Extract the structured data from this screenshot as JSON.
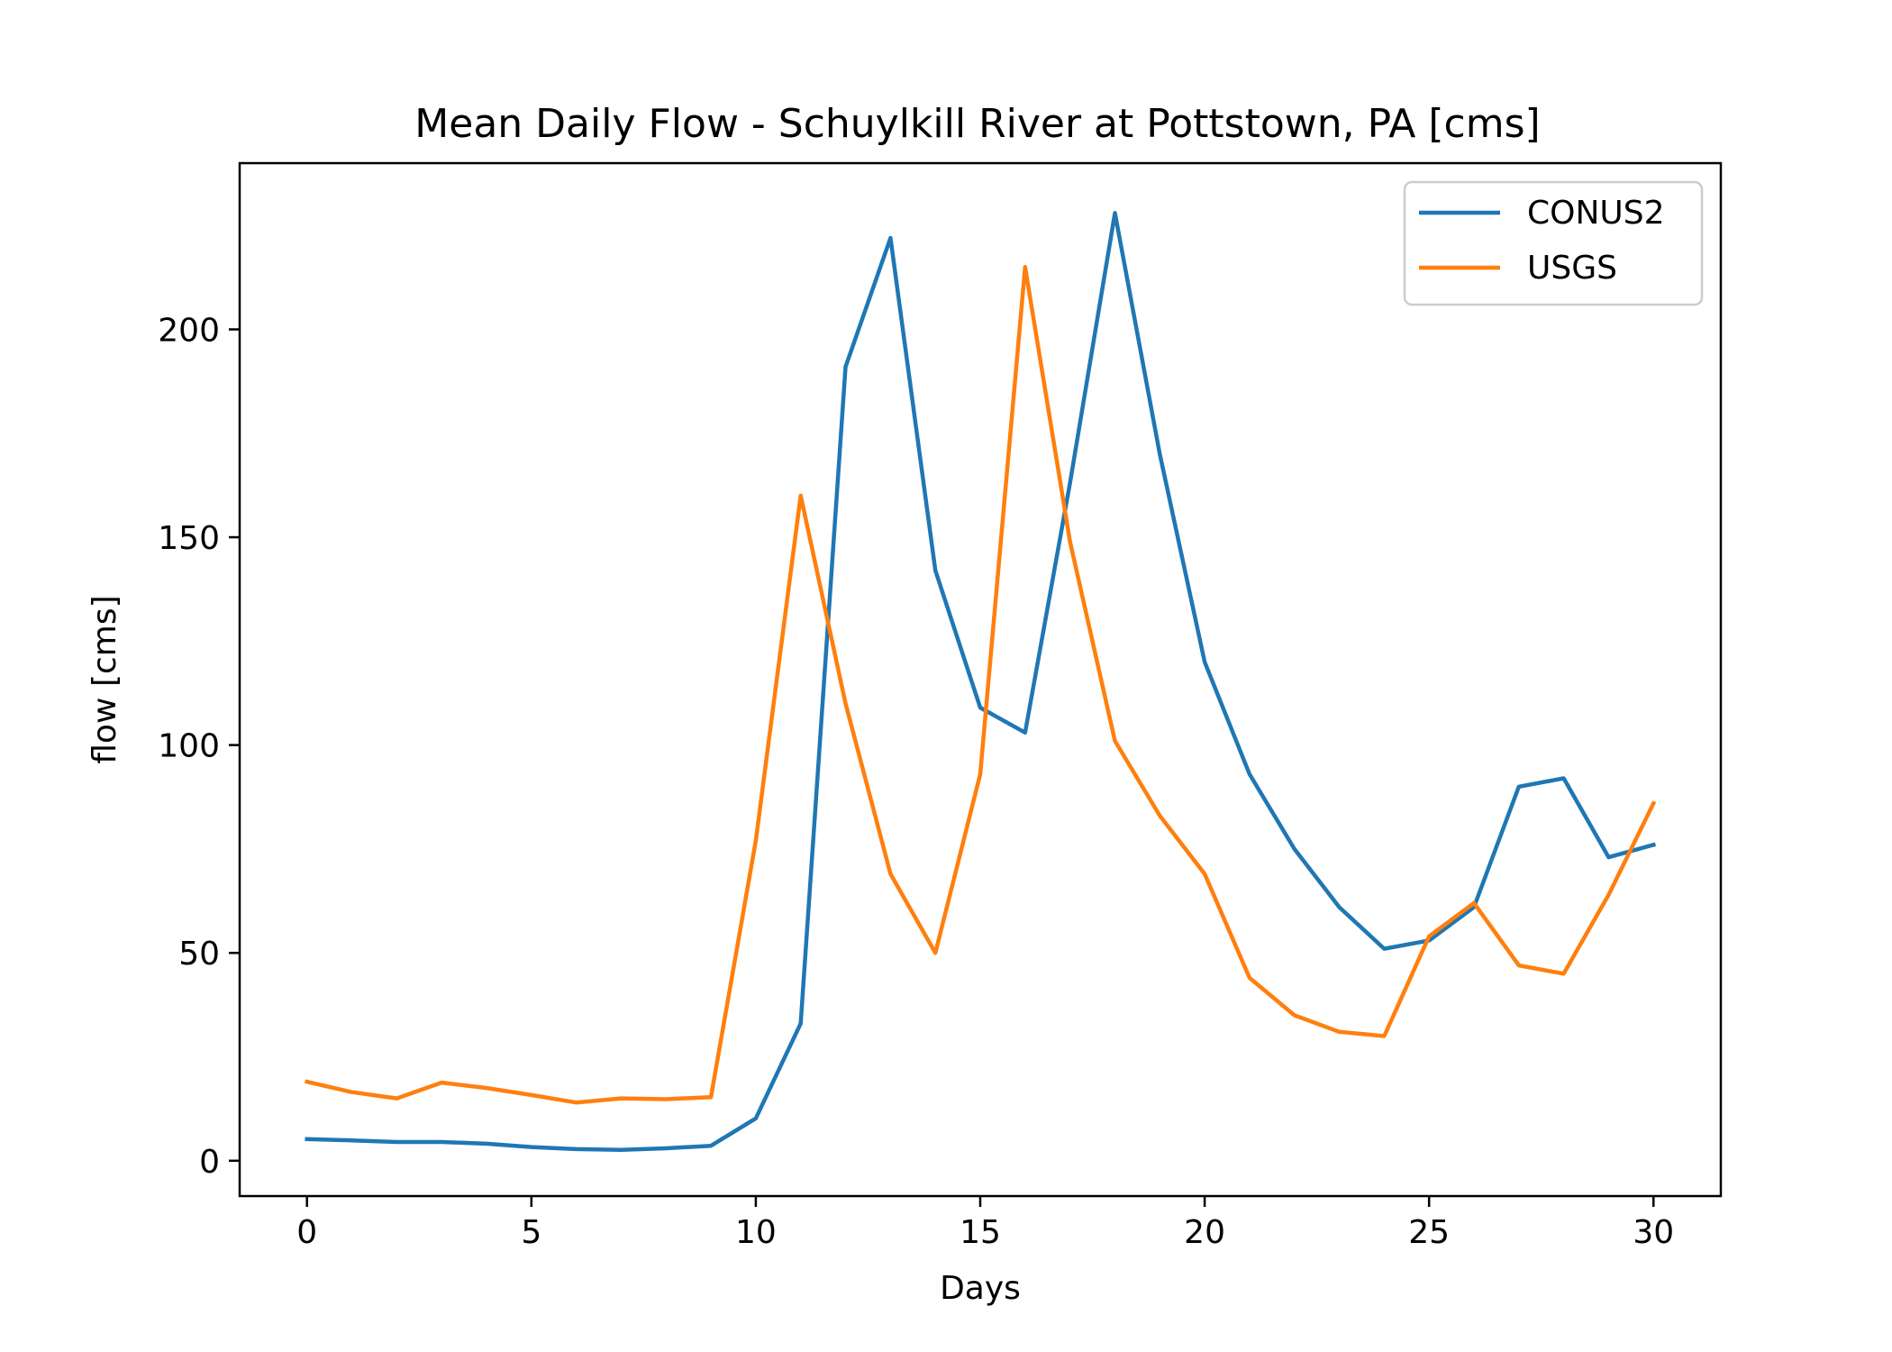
{
  "chart_data": {
    "type": "line",
    "title": "Mean Daily Flow - Schuylkill River at Pottstown, PA [cms]",
    "xlabel": "Days",
    "ylabel": "flow [cms]",
    "xlim": [
      -1.5,
      31.5
    ],
    "ylim": [
      -8.5,
      240
    ],
    "xticks": [
      0,
      5,
      10,
      15,
      20,
      25,
      30
    ],
    "yticks": [
      0,
      50,
      100,
      150,
      200
    ],
    "grid": false,
    "legend_position": "top-right",
    "x": [
      0,
      1,
      2,
      3,
      4,
      5,
      6,
      7,
      8,
      9,
      10,
      11,
      12,
      13,
      14,
      15,
      16,
      17,
      18,
      19,
      20,
      21,
      22,
      23,
      24,
      25,
      26,
      27,
      28,
      29,
      30
    ],
    "series": [
      {
        "name": "CONUS2",
        "color": "#1f77b4",
        "values": [
          5.2,
          4.9,
          4.5,
          4.5,
          4.1,
          3.3,
          2.8,
          2.6,
          3.0,
          3.6,
          10.2,
          33,
          191,
          222,
          142,
          109,
          103,
          163,
          228,
          170,
          120,
          93,
          75,
          61,
          51,
          53,
          61,
          90,
          92,
          73,
          76
        ]
      },
      {
        "name": "USGS",
        "color": "#ff7f0e",
        "values": [
          19.0,
          16.5,
          15.0,
          18.8,
          17.5,
          15.8,
          14.0,
          15.0,
          14.8,
          15.3,
          77,
          160,
          110,
          69,
          50,
          93,
          215,
          149,
          101,
          83,
          69,
          44,
          35,
          31,
          30,
          54,
          62,
          47,
          45,
          64,
          86
        ]
      }
    ]
  }
}
